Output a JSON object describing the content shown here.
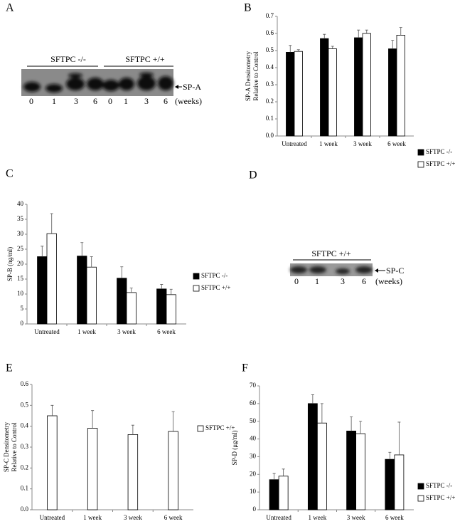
{
  "chart_data": [
    {
      "type": "bar",
      "label": "B",
      "ylabel": [
        "SP-A Densitometry",
        "Relative to Control"
      ],
      "categories": [
        "Untreated",
        "1 week",
        "3 week",
        "6 week"
      ],
      "ylim": [
        0,
        0.7
      ],
      "yticks": [
        {
          "value": 0,
          "label": "0.0"
        },
        0.1,
        0.2,
        0.3,
        0.4,
        0.5,
        0.6,
        0.7
      ],
      "series": [
        {
          "name": "SFTPC -/-",
          "color": "#000000",
          "values": [
            0.49,
            0.57,
            0.575,
            0.51
          ],
          "errors": [
            0.04,
            0.025,
            0.045,
            0.05
          ]
        },
        {
          "name": "SFTPC +/+",
          "color": "#ffffff",
          "values": [
            0.495,
            0.51,
            0.6,
            0.59
          ],
          "errors": [
            0.01,
            0.015,
            0.02,
            0.045
          ]
        }
      ]
    },
    {
      "type": "bar",
      "label": "C",
      "ylabel": [
        "SP-B (ng/ml)"
      ],
      "categories": [
        "Untreated",
        "1 week",
        "3 week",
        "6 week"
      ],
      "ylim": [
        0,
        40
      ],
      "yticks": [
        0,
        5,
        10,
        15,
        20,
        25,
        30,
        35,
        40
      ],
      "series": [
        {
          "name": "SFTPC -/-",
          "color": "#000000",
          "values": [
            22.5,
            22.7,
            15.3,
            11.7
          ],
          "errors": [
            3.5,
            4.5,
            3.8,
            1.5
          ]
        },
        {
          "name": "SFTPC +/+",
          "color": "#ffffff",
          "values": [
            30.2,
            19,
            10.5,
            9.8
          ],
          "errors": [
            6.7,
            3.5,
            1.5,
            1.8
          ]
        }
      ]
    },
    {
      "type": "bar",
      "label": "E",
      "ylabel": [
        "SP-C Densitometry",
        "Relative to Control"
      ],
      "categories": [
        "Untreated",
        "1 week",
        "3 week",
        "6 week"
      ],
      "ylim": [
        0,
        0.6
      ],
      "yticks": [
        {
          "value": 0,
          "label": "0.0"
        },
        0.1,
        0.2,
        0.3,
        0.4,
        0.5,
        0.6
      ],
      "series": [
        {
          "name": "SFTPC +/+",
          "color": "#ffffff",
          "values": [
            0.45,
            0.39,
            0.36,
            0.375
          ],
          "errors": [
            0.05,
            0.085,
            0.045,
            0.095
          ]
        }
      ]
    },
    {
      "type": "bar",
      "label": "F",
      "ylabel": [
        "SP-D (μg/ml)"
      ],
      "categories": [
        "Untreated",
        "1 week",
        "3 week",
        "6 week"
      ],
      "ylim": [
        0,
        70
      ],
      "yticks": [
        0,
        10,
        20,
        30,
        40,
        50,
        60,
        70
      ],
      "series": [
        {
          "name": "SFTPC -/-",
          "color": "#000000",
          "values": [
            17,
            60,
            44.5,
            28.5
          ],
          "errors": [
            3.5,
            5,
            8,
            4
          ]
        },
        {
          "name": "SFTPC +/+",
          "color": "#ffffff",
          "values": [
            19,
            49,
            43,
            31
          ],
          "errors": [
            4,
            11,
            7,
            18.5
          ]
        }
      ]
    }
  ],
  "blots": [
    {
      "label": "A",
      "groups": [
        "SFTPC -/-",
        "SFTPC +/+"
      ],
      "band": "SP-A",
      "lanes": [
        "0",
        "1",
        "3",
        "6",
        "0",
        "1",
        "3",
        "6"
      ],
      "unit": "(weeks)"
    },
    {
      "label": "D",
      "groups": [
        "SFTPC +/+"
      ],
      "band": "SP-C",
      "lanes": [
        "0",
        "1",
        "3",
        "6"
      ],
      "unit": "(weeks)"
    }
  ]
}
